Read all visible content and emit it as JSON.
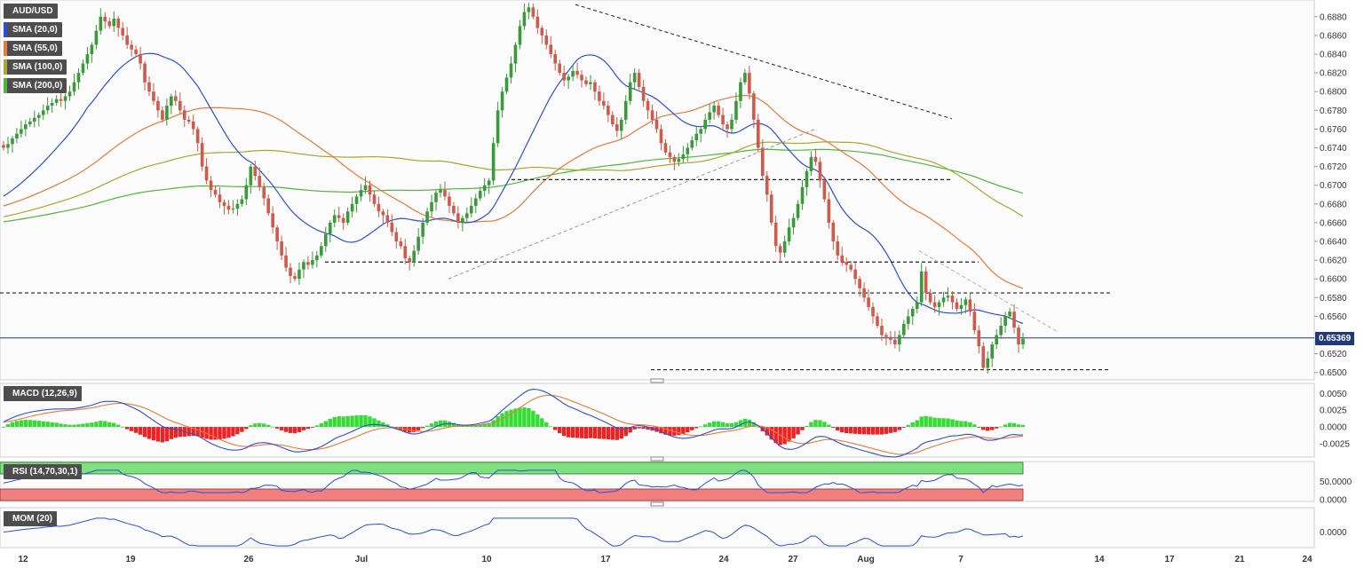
{
  "instrument": "AUD/USD",
  "overlays": [
    {
      "label": "SMA (20,0)",
      "color": "#2c4fd6"
    },
    {
      "label": "SMA (55,0)",
      "color": "#ea7a3a"
    },
    {
      "label": "SMA (100,0)",
      "color": "#a8a830"
    },
    {
      "label": "SMA (200,0)",
      "color": "#4fb83c"
    }
  ],
  "current_price": "0.65369",
  "panels": {
    "macd": {
      "label": "MACD (12,26,9)",
      "ticks": [
        "0.0050",
        "0.0025",
        "0.0000",
        "-0.0025"
      ]
    },
    "rsi": {
      "label": "RSI (14,70,30,1)",
      "ticks": [
        "50.0000",
        "0.0000"
      ]
    },
    "mom": {
      "label": "MOM (20)",
      "ticks": [
        "0.0000"
      ]
    }
  },
  "colors": {
    "up": "#3a9a3a",
    "down": "#d05a4a",
    "grid": "#e6e6e6",
    "macd_line": "#2c4fd6",
    "signal_line": "#ea7a3a",
    "hist_pos": "#33dd33",
    "hist_neg": "#ee2222",
    "rsi_line": "#2c4fd6",
    "rsi_upper": "#7fe07f",
    "rsi_lower": "#f08080",
    "price_line": "#1f3a7a"
  },
  "chart_data": {
    "type": "candlestick",
    "x_axis_labels": [
      "12",
      "19",
      "26",
      "Jul",
      "10",
      "17",
      "24",
      "27",
      "Aug",
      "7",
      "14",
      "17",
      "21",
      "24"
    ],
    "y_axis": {
      "range": [
        0.6495,
        0.6895
      ],
      "ticks": [
        "0.6880",
        "0.6860",
        "0.6840",
        "0.6820",
        "0.6800",
        "0.6780",
        "0.6760",
        "0.6740",
        "0.6720",
        "0.6700",
        "0.6680",
        "0.6660",
        "0.6640",
        "0.6620",
        "0.6600",
        "0.6580",
        "0.6560",
        "0.6520",
        "0.6500"
      ]
    },
    "close_series": [
      0.674,
      0.6744,
      0.675,
      0.6755,
      0.676,
      0.6765,
      0.6768,
      0.6772,
      0.6775,
      0.678,
      0.6785,
      0.6788,
      0.6792,
      0.679,
      0.6795,
      0.68,
      0.681,
      0.682,
      0.683,
      0.684,
      0.685,
      0.6865,
      0.688,
      0.6875,
      0.687,
      0.6878,
      0.6868,
      0.686,
      0.685,
      0.6845,
      0.684,
      0.683,
      0.681,
      0.68,
      0.679,
      0.678,
      0.677,
      0.6785,
      0.6795,
      0.679,
      0.678,
      0.677,
      0.6768,
      0.676,
      0.6745,
      0.672,
      0.6705,
      0.6695,
      0.669,
      0.6682,
      0.6678,
      0.6674,
      0.6675,
      0.668,
      0.6685,
      0.67,
      0.672,
      0.671,
      0.6698,
      0.6686,
      0.667,
      0.6655,
      0.664,
      0.6625,
      0.6612,
      0.6603,
      0.66,
      0.661,
      0.6618,
      0.6615,
      0.662,
      0.6625,
      0.6635,
      0.6648,
      0.666,
      0.6668,
      0.6665,
      0.666,
      0.6672,
      0.668,
      0.6688,
      0.6695,
      0.67,
      0.669,
      0.668,
      0.6672,
      0.6668,
      0.666,
      0.665,
      0.664,
      0.6635,
      0.6622,
      0.6618,
      0.663,
      0.6645,
      0.666,
      0.6672,
      0.6682,
      0.6692,
      0.6695,
      0.6688,
      0.6678,
      0.667,
      0.666,
      0.6665,
      0.667,
      0.6678,
      0.6686,
      0.6694,
      0.67,
      0.6705,
      0.6745,
      0.678,
      0.68,
      0.6815,
      0.683,
      0.685,
      0.687,
      0.6885,
      0.689,
      0.688,
      0.6868,
      0.686,
      0.685,
      0.684,
      0.683,
      0.682,
      0.6812,
      0.6816,
      0.6822,
      0.6818,
      0.6812,
      0.6808,
      0.681,
      0.68,
      0.679,
      0.6785,
      0.6775,
      0.6765,
      0.6758,
      0.677,
      0.679,
      0.681,
      0.682,
      0.6805,
      0.679,
      0.678,
      0.677,
      0.676,
      0.6745,
      0.6735,
      0.673,
      0.6725,
      0.6728,
      0.6733,
      0.674,
      0.6748,
      0.6755,
      0.676,
      0.677,
      0.6778,
      0.6785,
      0.6775,
      0.6765,
      0.676,
      0.677,
      0.679,
      0.681,
      0.682,
      0.6798,
      0.677,
      0.674,
      0.671,
      0.669,
      0.666,
      0.6635,
      0.6628,
      0.664,
      0.6655,
      0.6665,
      0.668,
      0.6698,
      0.6715,
      0.673,
      0.6725,
      0.6705,
      0.6685,
      0.666,
      0.664,
      0.6625,
      0.6618,
      0.6615,
      0.661,
      0.66,
      0.659,
      0.658,
      0.657,
      0.656,
      0.655,
      0.654,
      0.6538,
      0.6535,
      0.653,
      0.654,
      0.6552,
      0.656,
      0.6568,
      0.6575,
      0.6608,
      0.6585,
      0.6575,
      0.657,
      0.6575,
      0.658,
      0.6582,
      0.6575,
      0.6568,
      0.6572,
      0.6578,
      0.6565,
      0.6545,
      0.6528,
      0.6505,
      0.6515,
      0.653,
      0.654,
      0.655,
      0.656,
      0.6565,
      0.6548,
      0.653,
      0.6536
    ]
  }
}
